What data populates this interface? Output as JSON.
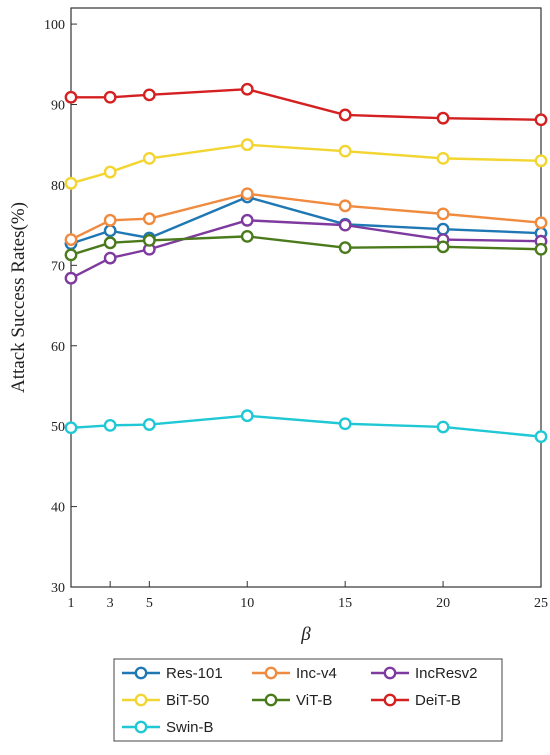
{
  "chart_data": {
    "type": "line",
    "x": [
      1,
      3,
      5,
      10,
      15,
      20,
      25
    ],
    "xlabel": "β",
    "ylabel": "Attack Success Rates(%)",
    "xlim": [
      1,
      25
    ],
    "ylim": [
      30,
      102
    ],
    "xticks": [
      1,
      3,
      5,
      10,
      15,
      20,
      25
    ],
    "yticks": [
      30,
      40,
      50,
      60,
      70,
      80,
      90,
      100
    ],
    "grid": false,
    "legend_position": "bottom",
    "series": [
      {
        "name": "Res-101",
        "color": "#1f77b4",
        "values": [
          72.7,
          74.3,
          73.4,
          78.5,
          75.1,
          74.5,
          74.0
        ]
      },
      {
        "name": "Inc-v4",
        "color": "#f08a3e",
        "values": [
          73.2,
          75.6,
          75.8,
          78.9,
          77.4,
          76.4,
          75.3
        ]
      },
      {
        "name": "IncResv2",
        "color": "#7e3a9e",
        "values": [
          68.4,
          70.9,
          72.0,
          75.6,
          75.0,
          73.2,
          73.0
        ]
      },
      {
        "name": "BiT-50",
        "color": "#f2d530",
        "values": [
          80.2,
          81.6,
          83.3,
          85.0,
          84.2,
          83.3,
          83.0
        ]
      },
      {
        "name": "ViT-B",
        "color": "#4a7a1c",
        "values": [
          71.3,
          72.8,
          73.1,
          73.6,
          72.2,
          72.3,
          72.0
        ]
      },
      {
        "name": "DeiT-B",
        "color": "#d42020",
        "values": [
          90.9,
          90.9,
          91.2,
          91.9,
          88.7,
          88.3,
          88.1
        ]
      },
      {
        "name": "Swin-B",
        "color": "#1fc8d4",
        "values": [
          49.8,
          50.1,
          50.2,
          51.3,
          50.3,
          49.9,
          48.7
        ]
      }
    ]
  }
}
